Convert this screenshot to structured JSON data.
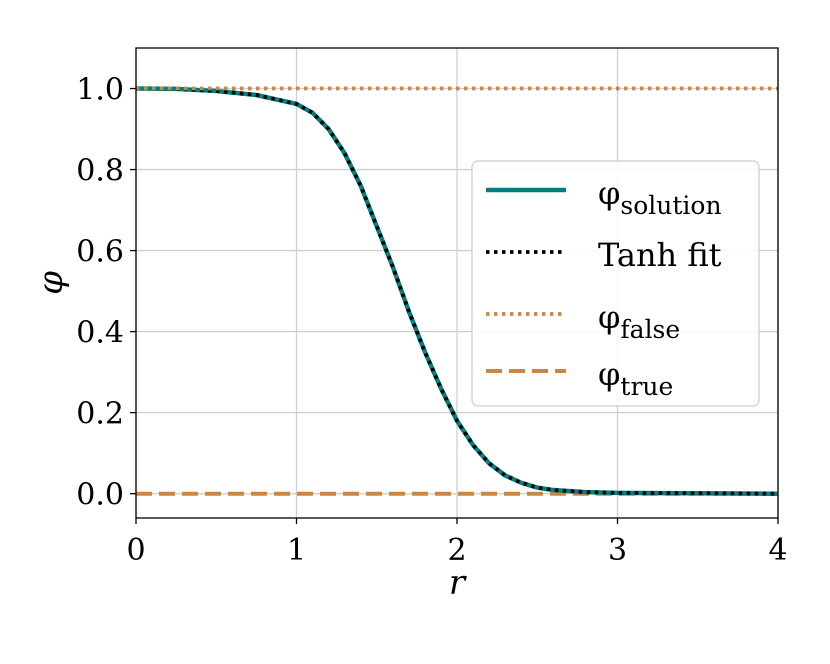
{
  "chart_data": {
    "type": "line",
    "title": "",
    "xlabel": "r",
    "ylabel": "φ",
    "xlim": [
      0,
      4
    ],
    "ylim": [
      -0.06,
      1.1
    ],
    "xticks": [
      0,
      1,
      2,
      3,
      4
    ],
    "xtick_labels": [
      "0",
      "1",
      "2",
      "3",
      "4"
    ],
    "yticks": [
      0.0,
      0.2,
      0.4,
      0.6,
      0.8,
      1.0
    ],
    "ytick_labels": [
      "0.0",
      "0.2",
      "0.4",
      "0.6",
      "0.8",
      "1.0"
    ],
    "grid": true,
    "legend_position": "center-right",
    "series": [
      {
        "key": "solution",
        "name": "φ",
        "name_sub": "solution",
        "style": "solid",
        "color": "#008080",
        "x": [
          0,
          0.25,
          0.5,
          0.75,
          1.0,
          1.1,
          1.2,
          1.3,
          1.4,
          1.5,
          1.6,
          1.7,
          1.8,
          1.9,
          2.0,
          2.1,
          2.2,
          2.3,
          2.4,
          2.5,
          2.6,
          2.8,
          3.0,
          3.5,
          4.0
        ],
        "y": [
          1.0,
          0.999,
          0.994,
          0.984,
          0.962,
          0.94,
          0.9,
          0.84,
          0.76,
          0.66,
          0.56,
          0.45,
          0.35,
          0.26,
          0.18,
          0.12,
          0.075,
          0.045,
          0.027,
          0.015,
          0.009,
          0.004,
          0.002,
          0.001,
          0.0
        ]
      },
      {
        "key": "tanh",
        "name": "Tanh fit",
        "style": "dotted",
        "color": "#000000",
        "x": [
          0,
          0.25,
          0.5,
          0.75,
          1.0,
          1.1,
          1.2,
          1.3,
          1.4,
          1.5,
          1.6,
          1.7,
          1.8,
          1.9,
          2.0,
          2.1,
          2.2,
          2.3,
          2.4,
          2.5,
          2.6,
          2.8,
          3.0,
          3.5,
          4.0
        ],
        "y": [
          1.0,
          0.999,
          0.994,
          0.984,
          0.962,
          0.94,
          0.9,
          0.84,
          0.76,
          0.66,
          0.56,
          0.45,
          0.35,
          0.26,
          0.18,
          0.12,
          0.075,
          0.045,
          0.027,
          0.015,
          0.009,
          0.004,
          0.002,
          0.001,
          0.0
        ]
      },
      {
        "key": "false",
        "name": "φ",
        "name_sub": "false",
        "style": "dotted",
        "color": "#CD853F",
        "x": [
          0,
          4
        ],
        "y": [
          1.0,
          1.0
        ]
      },
      {
        "key": "true",
        "name": "φ",
        "name_sub": "true",
        "style": "dashed",
        "color": "#CD853F",
        "x": [
          0,
          4
        ],
        "y": [
          0.0,
          0.0
        ]
      }
    ]
  }
}
